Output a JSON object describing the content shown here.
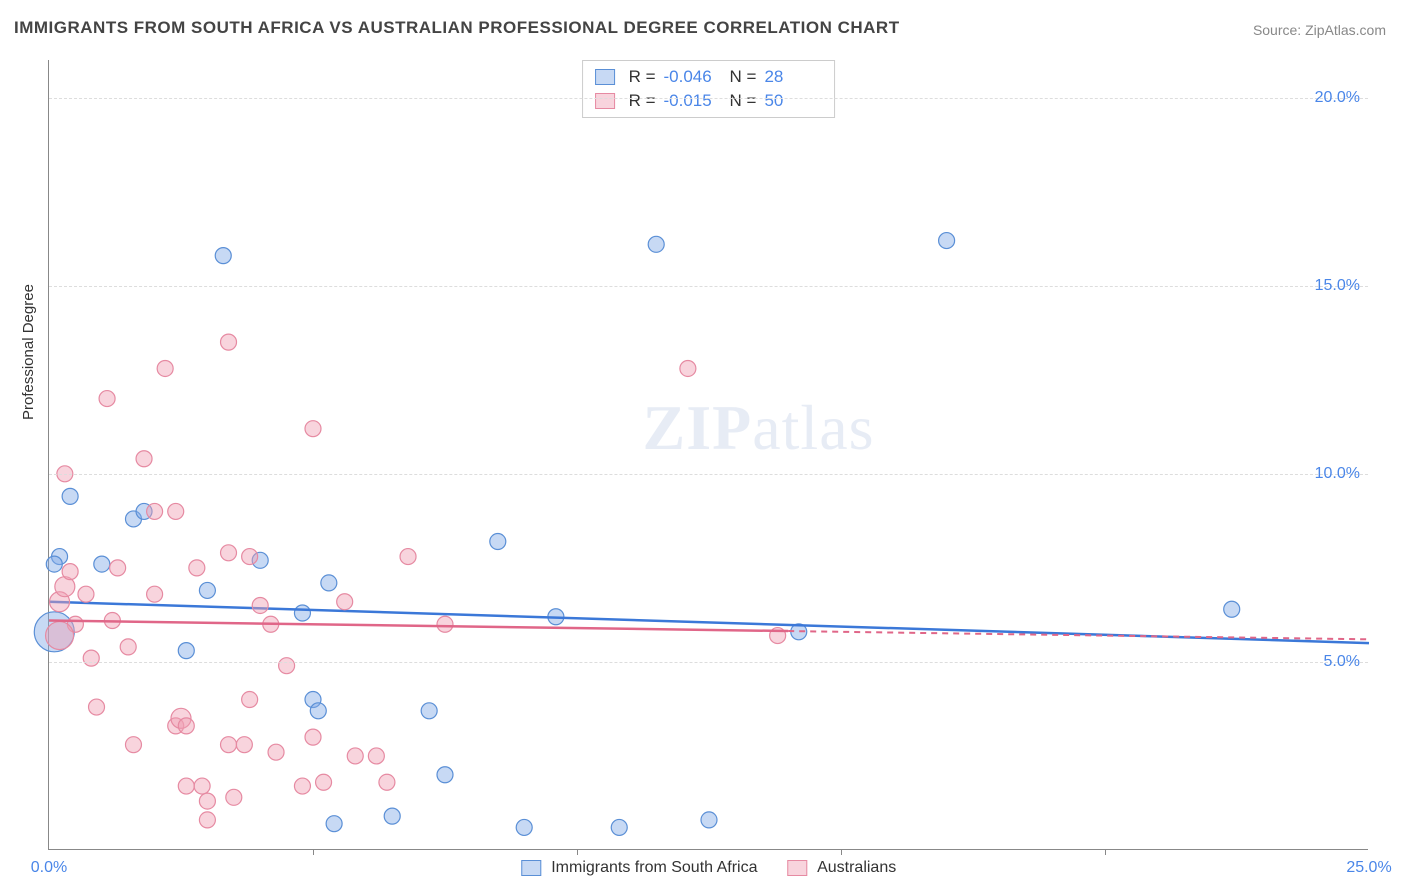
{
  "title": "IMMIGRANTS FROM SOUTH AFRICA VS AUSTRALIAN PROFESSIONAL DEGREE CORRELATION CHART",
  "source": "Source: ZipAtlas.com",
  "watermark": {
    "zip": "ZIP",
    "atlas": "atlas"
  },
  "yaxis_label": "Professional Degree",
  "chart": {
    "type": "scatter",
    "xlim": [
      0,
      25
    ],
    "ylim": [
      0,
      21
    ],
    "x_ticks": [
      0,
      25
    ],
    "x_tick_labels": [
      "0.0%",
      "25.0%"
    ],
    "x_tick_minors": [
      5,
      10,
      15,
      20
    ],
    "y_ticks": [
      5,
      10,
      15,
      20
    ],
    "y_tick_labels": [
      "5.0%",
      "10.0%",
      "15.0%",
      "20.0%"
    ],
    "grid_color": "#dddddd",
    "background_color": "#ffffff",
    "series": [
      {
        "name": "Immigrants from South Africa",
        "fill": "rgba(130,170,230,0.45)",
        "stroke": "#5a8fd6",
        "line_color": "#3b78d8",
        "r_value": "-0.046",
        "n_value": "28",
        "trend": {
          "x1": 0,
          "y1": 6.6,
          "x2": 25,
          "y2": 5.5,
          "solid_until_x": 25
        },
        "points": [
          {
            "x": 0.4,
            "y": 9.4,
            "r": 8
          },
          {
            "x": 0.2,
            "y": 7.8,
            "r": 8
          },
          {
            "x": 0.1,
            "y": 7.6,
            "r": 8
          },
          {
            "x": 0.1,
            "y": 5.8,
            "r": 20
          },
          {
            "x": 1.0,
            "y": 7.6,
            "r": 8
          },
          {
            "x": 1.6,
            "y": 8.8,
            "r": 8
          },
          {
            "x": 1.8,
            "y": 9.0,
            "r": 8
          },
          {
            "x": 2.6,
            "y": 5.3,
            "r": 8
          },
          {
            "x": 3.0,
            "y": 6.9,
            "r": 8
          },
          {
            "x": 3.3,
            "y": 15.8,
            "r": 8
          },
          {
            "x": 4.0,
            "y": 7.7,
            "r": 8
          },
          {
            "x": 4.8,
            "y": 6.3,
            "r": 8
          },
          {
            "x": 5.0,
            "y": 4.0,
            "r": 8
          },
          {
            "x": 5.1,
            "y": 3.7,
            "r": 8
          },
          {
            "x": 5.3,
            "y": 7.1,
            "r": 8
          },
          {
            "x": 5.4,
            "y": 0.7,
            "r": 8
          },
          {
            "x": 6.5,
            "y": 0.9,
            "r": 8
          },
          {
            "x": 7.2,
            "y": 3.7,
            "r": 8
          },
          {
            "x": 7.5,
            "y": 2.0,
            "r": 8
          },
          {
            "x": 8.5,
            "y": 8.2,
            "r": 8
          },
          {
            "x": 9.0,
            "y": 0.6,
            "r": 8
          },
          {
            "x": 9.6,
            "y": 6.2,
            "r": 8
          },
          {
            "x": 10.8,
            "y": 0.6,
            "r": 8
          },
          {
            "x": 11.5,
            "y": 16.1,
            "r": 8
          },
          {
            "x": 12.5,
            "y": 0.8,
            "r": 8
          },
          {
            "x": 14.2,
            "y": 5.8,
            "r": 8
          },
          {
            "x": 17.0,
            "y": 16.2,
            "r": 8
          },
          {
            "x": 22.4,
            "y": 6.4,
            "r": 8
          }
        ]
      },
      {
        "name": "Australians",
        "fill": "rgba(240,160,180,0.45)",
        "stroke": "#e68aa2",
        "line_color": "#e06688",
        "r_value": "-0.015",
        "n_value": "50",
        "trend": {
          "x1": 0,
          "y1": 6.1,
          "x2": 25,
          "y2": 5.6,
          "solid_until_x": 14
        },
        "points": [
          {
            "x": 0.3,
            "y": 10.0,
            "r": 8
          },
          {
            "x": 0.2,
            "y": 6.6,
            "r": 10
          },
          {
            "x": 0.3,
            "y": 7.0,
            "r": 10
          },
          {
            "x": 0.4,
            "y": 7.4,
            "r": 8
          },
          {
            "x": 0.5,
            "y": 6.0,
            "r": 8
          },
          {
            "x": 0.7,
            "y": 6.8,
            "r": 8
          },
          {
            "x": 0.8,
            "y": 5.1,
            "r": 8
          },
          {
            "x": 0.9,
            "y": 3.8,
            "r": 8
          },
          {
            "x": 0.2,
            "y": 5.7,
            "r": 14
          },
          {
            "x": 1.1,
            "y": 12.0,
            "r": 8
          },
          {
            "x": 1.2,
            "y": 6.1,
            "r": 8
          },
          {
            "x": 1.3,
            "y": 7.5,
            "r": 8
          },
          {
            "x": 1.5,
            "y": 5.4,
            "r": 8
          },
          {
            "x": 1.6,
            "y": 2.8,
            "r": 8
          },
          {
            "x": 1.8,
            "y": 10.4,
            "r": 8
          },
          {
            "x": 2.0,
            "y": 9.0,
            "r": 8
          },
          {
            "x": 2.0,
            "y": 6.8,
            "r": 8
          },
          {
            "x": 2.2,
            "y": 12.8,
            "r": 8
          },
          {
            "x": 2.4,
            "y": 9.0,
            "r": 8
          },
          {
            "x": 2.4,
            "y": 3.3,
            "r": 8
          },
          {
            "x": 2.5,
            "y": 3.5,
            "r": 10
          },
          {
            "x": 2.6,
            "y": 3.3,
            "r": 8
          },
          {
            "x": 2.6,
            "y": 1.7,
            "r": 8
          },
          {
            "x": 2.8,
            "y": 7.5,
            "r": 8
          },
          {
            "x": 2.9,
            "y": 1.7,
            "r": 8
          },
          {
            "x": 3.0,
            "y": 1.3,
            "r": 8
          },
          {
            "x": 3.0,
            "y": 0.8,
            "r": 8
          },
          {
            "x": 3.4,
            "y": 7.9,
            "r": 8
          },
          {
            "x": 3.4,
            "y": 2.8,
            "r": 8
          },
          {
            "x": 3.4,
            "y": 13.5,
            "r": 8
          },
          {
            "x": 3.5,
            "y": 1.4,
            "r": 8
          },
          {
            "x": 3.7,
            "y": 2.8,
            "r": 8
          },
          {
            "x": 3.8,
            "y": 7.8,
            "r": 8
          },
          {
            "x": 3.8,
            "y": 4.0,
            "r": 8
          },
          {
            "x": 4.0,
            "y": 6.5,
            "r": 8
          },
          {
            "x": 4.2,
            "y": 6.0,
            "r": 8
          },
          {
            "x": 4.3,
            "y": 2.6,
            "r": 8
          },
          {
            "x": 4.5,
            "y": 4.9,
            "r": 8
          },
          {
            "x": 4.8,
            "y": 1.7,
            "r": 8
          },
          {
            "x": 5.0,
            "y": 3.0,
            "r": 8
          },
          {
            "x": 5.0,
            "y": 11.2,
            "r": 8
          },
          {
            "x": 5.2,
            "y": 1.8,
            "r": 8
          },
          {
            "x": 5.6,
            "y": 6.6,
            "r": 8
          },
          {
            "x": 5.8,
            "y": 2.5,
            "r": 8
          },
          {
            "x": 6.2,
            "y": 2.5,
            "r": 8
          },
          {
            "x": 6.4,
            "y": 1.8,
            "r": 8
          },
          {
            "x": 6.8,
            "y": 7.8,
            "r": 8
          },
          {
            "x": 7.5,
            "y": 6.0,
            "r": 8
          },
          {
            "x": 12.1,
            "y": 12.8,
            "r": 8
          },
          {
            "x": 13.8,
            "y": 5.7,
            "r": 8
          }
        ]
      }
    ]
  },
  "legend_top": {
    "r_label": "R =",
    "n_label": "N ="
  },
  "legend_bottom": {
    "a": "Immigrants from South Africa",
    "b": "Australians"
  }
}
